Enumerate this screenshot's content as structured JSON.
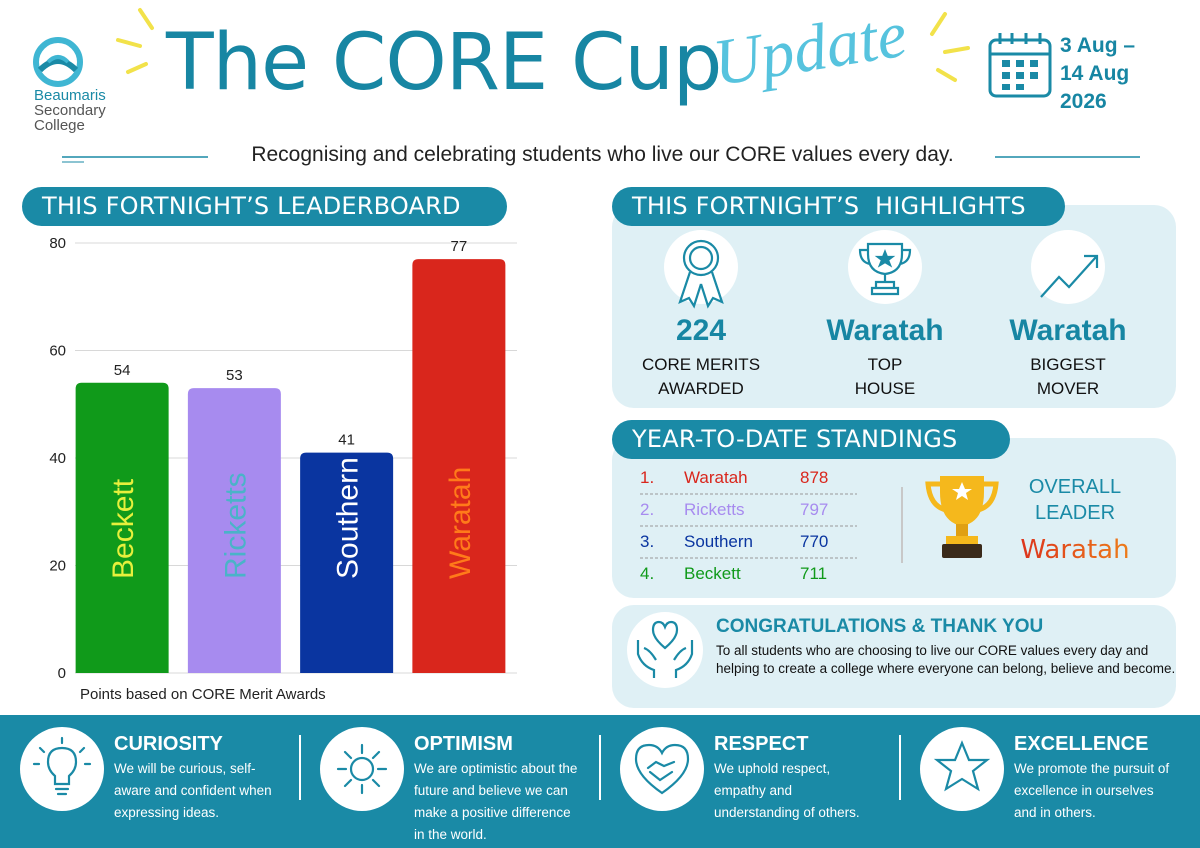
{
  "logo": [
    "Beaumaris",
    "Secondary",
    "College"
  ],
  "title": "The CORE Cup",
  "title_accent": "Update",
  "dates": [
    "3 Aug –",
    "14 Aug",
    "2026"
  ],
  "subtitle": "Recognising and celebrating students who live our CORE values every day.",
  "chart_data": {
    "type": "bar",
    "title": "THIS FORTNIGHT’S LEADERBOARD",
    "categories": [
      "Beckett",
      "Ricketts",
      "Southern",
      "Waratah"
    ],
    "values": [
      54,
      53,
      41,
      77
    ],
    "colors": [
      "#109a1a",
      "#a78bef",
      "#0a35a0",
      "#d9261c"
    ],
    "label_colors": [
      "#e6f03c",
      "#4ab3c8",
      "#ffffff",
      "#ff7a1a"
    ],
    "ylim": [
      0,
      80
    ],
    "yticks": [
      0,
      20,
      40,
      60,
      80
    ],
    "grid": true,
    "note": "Points based on CORE Merit Awards"
  },
  "highlights": {
    "title": "THIS FORTNIGHT’S  HIGHLIGHTS",
    "items": [
      {
        "value": 224,
        "label": [
          "CORE MERITS",
          "AWARDED"
        ]
      },
      {
        "value": "Waratah",
        "label": [
          "TOP",
          "HOUSE"
        ]
      },
      {
        "value": "Waratah",
        "label": [
          "BIGGEST",
          "MOVER"
        ]
      }
    ]
  },
  "standings": {
    "title": "YEAR-TO-DATE STANDINGS",
    "rows": [
      {
        "rank": "1.",
        "house": "Waratah",
        "points": 878,
        "color": "#d9261c"
      },
      {
        "rank": "2.",
        "house": "Ricketts",
        "points": 797,
        "color": "#a78bef"
      },
      {
        "rank": "3.",
        "house": "Southern",
        "points": 770,
        "color": "#0a35a0"
      },
      {
        "rank": "4.",
        "house": "Beckett",
        "points": 711,
        "color": "#109a1a"
      }
    ],
    "leader_label": [
      "OVERALL",
      "LEADER"
    ],
    "leader": "Waratah"
  },
  "congrats": {
    "title": "CONGRATULATIONS & THANK YOU",
    "text": "To all students who are choosing to live our CORE values every day and helping to create a college where everyone can belong, believe and become."
  },
  "values": [
    {
      "title": "CURIOSITY",
      "text": "We will be curious, self-aware and confident when expressing ideas."
    },
    {
      "title": "OPTIMISM",
      "text": "We are optimistic about the future and believe we can make a positive difference in the world."
    },
    {
      "title": "RESPECT",
      "text": "We uphold respect, empathy and understanding of others."
    },
    {
      "title": "EXCELLENCE",
      "text": "We promote the pursuit of excellence in ourselves and in others."
    }
  ]
}
